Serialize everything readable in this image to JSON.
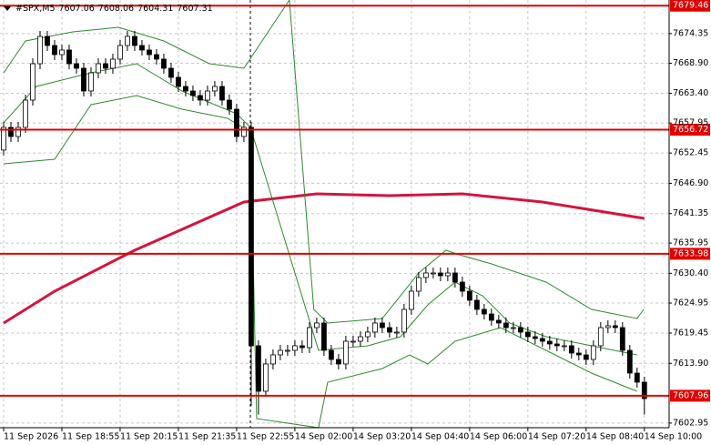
{
  "chart_data": {
    "type": "candlestick",
    "title": "#SPX,M5",
    "header_values": [
      7607.06,
      7608.06,
      7604.31,
      7607.31
    ],
    "candle_color": "#000000",
    "ylim": [
      7602.1,
      7680.5
    ],
    "yticks": [
      7602.95,
      {
        "value": 7613.9,
        "label": "7613.90"
      },
      7619.45,
      7624.95,
      {
        "value": 7630.4,
        "label": "7630.40"
      },
      7635.95,
      7641.35,
      {
        "value": 7646.9,
        "label": "7646.90"
      },
      7652.45,
      7657.95,
      {
        "value": 7663.4,
        "label": "7663.40"
      },
      {
        "value": 7668.9,
        "label": "7668.90"
      },
      7674.35
    ],
    "xlim": [
      -0.5,
      91.4
    ],
    "xticks": [
      {
        "value": 0,
        "label": "11 Sep 2026"
      },
      {
        "value": 8,
        "label": "11 Sep 18:55"
      },
      {
        "value": 16,
        "label": "11 Sep 20:15"
      },
      {
        "value": 24,
        "label": "11 Sep 21:35"
      },
      {
        "value": 32,
        "label": "11 Sep 22:55"
      },
      {
        "value": 40,
        "label": "14 Sep 02:00"
      },
      {
        "value": 48,
        "label": "14 Sep 03:20"
      },
      {
        "value": 56,
        "label": "14 Sep 04:40"
      },
      {
        "value": 64,
        "label": "14 Sep 06:00"
      },
      {
        "value": 72,
        "label": "14 Sep 07:20"
      },
      {
        "value": 80,
        "label": "14 Sep 08:40"
      },
      {
        "value": 88,
        "label": "14 Sep 10:00"
      }
    ],
    "grid": true,
    "candles": [
      [
        7653.0,
        7658.15,
        7652.0,
        7657.15
      ],
      [
        7657.15,
        7658.15,
        7654.48,
        7655.48
      ],
      [
        7655.48,
        7658.15,
        7654.48,
        7657.15
      ],
      [
        7657.15,
        7663.15,
        7656.15,
        7662.15
      ],
      [
        7662.15,
        7669.82,
        7661.15,
        7668.82
      ],
      [
        7668.82,
        7674.83,
        7667.82,
        7673.83
      ],
      [
        7673.83,
        7674.83,
        7671.16,
        7672.16
      ],
      [
        7672.16,
        7673.16,
        7669.49,
        7670.49
      ],
      [
        7670.49,
        7672.33,
        7669.49,
        7671.33
      ],
      [
        7671.33,
        7672.33,
        7667.82,
        7668.82
      ],
      [
        7668.82,
        7669.82,
        7666.99,
        7667.99
      ],
      [
        7667.99,
        7668.99,
        7662.82,
        7663.82
      ],
      [
        7663.82,
        7668.16,
        7662.82,
        7667.16
      ],
      [
        7667.16,
        7669.82,
        7666.16,
        7668.82
      ],
      [
        7668.82,
        7669.82,
        7666.99,
        7667.99
      ],
      [
        7667.99,
        7670.66,
        7666.99,
        7669.66
      ],
      [
        7669.66,
        7673.16,
        7668.66,
        7672.16
      ],
      [
        7672.16,
        7674.83,
        7671.16,
        7673.83
      ],
      [
        7673.83,
        7674.83,
        7671.16,
        7672.16
      ],
      [
        7672.16,
        7673.16,
        7670.33,
        7671.33
      ],
      [
        7671.33,
        7672.33,
        7669.49,
        7670.49
      ],
      [
        7670.49,
        7671.49,
        7668.66,
        7669.66
      ],
      [
        7669.66,
        7670.66,
        7666.99,
        7667.99
      ],
      [
        7667.99,
        7668.99,
        7665.32,
        7666.32
      ],
      [
        7666.32,
        7667.32,
        7663.65,
        7664.65
      ],
      [
        7664.65,
        7665.65,
        7662.82,
        7663.82
      ],
      [
        7663.82,
        7664.82,
        7661.99,
        7662.99
      ],
      [
        7662.99,
        7663.99,
        7661.15,
        7662.15
      ],
      [
        7662.15,
        7664.82,
        7661.15,
        7663.82
      ],
      [
        7663.82,
        7665.65,
        7662.82,
        7664.65
      ],
      [
        7664.65,
        7665.65,
        7661.15,
        7662.15
      ],
      [
        7662.15,
        7663.15,
        7659.48,
        7660.48
      ],
      [
        7660.48,
        7661.48,
        7654.48,
        7655.48
      ],
      [
        7655.48,
        7658.15,
        7654.48,
        7657.15
      ],
      [
        7657.15,
        7658.15,
        7606.12,
        7617.12
      ],
      [
        7617.12,
        7618.12,
        7604.5,
        7608.78
      ],
      [
        7608.78,
        7614.78,
        7607.78,
        7613.78
      ],
      [
        7613.78,
        7616.45,
        7612.78,
        7615.45
      ],
      [
        7615.45,
        7617.28,
        7614.45,
        7616.28
      ],
      [
        7616.28,
        7617.28,
        7615.28,
        7616.28
      ],
      [
        7616.28,
        7618.12,
        7615.28,
        7617.12
      ],
      [
        7617.12,
        7618.12,
        7615.78,
        7616.78
      ],
      [
        7616.78,
        7621.45,
        7615.78,
        7620.45
      ],
      [
        7620.45,
        7622.29,
        7619.45,
        7621.29
      ],
      [
        7621.29,
        7622.29,
        7615.28,
        7616.28
      ],
      [
        7616.28,
        7617.28,
        7613.61,
        7614.61
      ],
      [
        7614.61,
        7615.61,
        7612.78,
        7613.78
      ],
      [
        7613.78,
        7618.95,
        7612.78,
        7617.95
      ],
      [
        7617.95,
        7618.95,
        7616.95,
        7617.95
      ],
      [
        7617.95,
        7619.78,
        7616.95,
        7618.78
      ],
      [
        7618.78,
        7620.62,
        7617.78,
        7619.62
      ],
      [
        7619.62,
        7622.29,
        7618.62,
        7621.29
      ],
      [
        7621.29,
        7622.29,
        7619.45,
        7620.45
      ],
      [
        7620.45,
        7621.45,
        7618.62,
        7619.62
      ],
      [
        7619.62,
        7620.62,
        7618.62,
        7619.62
      ],
      [
        7619.62,
        7624.79,
        7618.62,
        7623.79
      ],
      [
        7623.79,
        7628.12,
        7622.79,
        7627.12
      ],
      [
        7627.12,
        7630.63,
        7626.12,
        7629.63
      ],
      [
        7629.63,
        7631.46,
        7628.63,
        7630.46
      ],
      [
        7630.46,
        7631.46,
        7629.46,
        7630.46
      ],
      [
        7630.46,
        7631.46,
        7628.96,
        7629.96
      ],
      [
        7629.96,
        7631.46,
        7628.96,
        7630.46
      ],
      [
        7630.46,
        7631.46,
        7627.79,
        7628.79
      ],
      [
        7628.79,
        7629.79,
        7626.12,
        7627.12
      ],
      [
        7627.12,
        7628.12,
        7624.46,
        7625.46
      ],
      [
        7625.46,
        7626.46,
        7622.79,
        7623.79
      ],
      [
        7623.79,
        7624.79,
        7621.95,
        7622.95
      ],
      [
        7622.95,
        7623.95,
        7620.79,
        7621.79
      ],
      [
        7621.79,
        7622.79,
        7620.29,
        7621.29
      ],
      [
        7621.29,
        7622.29,
        7619.45,
        7620.45
      ],
      [
        7620.45,
        7621.45,
        7619.45,
        7620.45
      ],
      [
        7620.45,
        7621.45,
        7618.62,
        7619.62
      ],
      [
        7619.62,
        7620.62,
        7617.78,
        7618.78
      ],
      [
        7618.78,
        7619.78,
        7617.45,
        7618.45
      ],
      [
        7618.45,
        7619.45,
        7616.95,
        7617.95
      ],
      [
        7617.95,
        7618.95,
        7616.45,
        7617.45
      ],
      [
        7617.45,
        7618.45,
        7616.12,
        7617.12
      ],
      [
        7617.12,
        7618.12,
        7616.12,
        7617.12
      ],
      [
        7617.12,
        7618.12,
        7614.78,
        7615.78
      ],
      [
        7615.78,
        7616.78,
        7614.45,
        7615.45
      ],
      [
        7615.45,
        7616.45,
        7613.61,
        7614.61
      ],
      [
        7614.61,
        7618.12,
        7613.61,
        7617.12
      ],
      [
        7617.12,
        7621.45,
        7616.12,
        7620.45
      ],
      [
        7620.45,
        7621.79,
        7619.45,
        7620.79
      ],
      [
        7620.79,
        7621.79,
        7619.45,
        7620.45
      ],
      [
        7620.45,
        7621.45,
        7615.28,
        7616.28
      ],
      [
        7616.28,
        7617.28,
        7611.11,
        7612.11
      ],
      [
        7612.11,
        7613.11,
        7609.44,
        7610.44
      ],
      [
        7610.44,
        7611.44,
        7604.5,
        7607.44
      ]
    ],
    "series": [
      {
        "color": "#d4143c",
        "x": [
          0,
          7,
          18,
          33,
          43,
          53,
          63,
          74,
          88
        ],
        "values": [
          7621.29,
          7627.12,
          7634.63,
          7643.47,
          7644.97,
          7644.64,
          7644.97,
          7643.47,
          7640.47
        ]
      },
      {
        "color": "#2e8b2e",
        "x": [
          0,
          3,
          9.5,
          15.75,
          22,
          28.25,
          33,
          39.25,
          42.6,
          44.5,
          52,
          57,
          60.75,
          62.6,
          67,
          74.5,
          80.75,
          87,
          87.9
        ],
        "values": [
          7667.16,
          7672.99,
          7674.66,
          7675.5,
          7672.99,
          7668.82,
          7667.99,
          7680.5,
          7623.79,
          7621.29,
          7622.12,
          7630.46,
          7634.63,
          7633.8,
          7632.13,
          7628.79,
          7623.79,
          7622.12,
          7623.79
        ]
      },
      {
        "color": "#2e8b2e",
        "x": [
          0,
          4.5,
          12,
          18.25,
          24.5,
          32,
          33.9,
          43.25,
          50,
          54.5,
          58.25,
          62,
          65.75,
          69.5,
          74.5,
          80.75,
          87
        ],
        "values": [
          7657.98,
          7664.65,
          7667.16,
          7668.82,
          7663.82,
          7659.65,
          7657.15,
          7616.28,
          7617.12,
          7618.78,
          7624.62,
          7628.79,
          7626.29,
          7621.29,
          7618.78,
          7617.12,
          7615.45
        ]
      },
      {
        "color": "#2e8b2e",
        "x": [
          0,
          7,
          12,
          18.25,
          24.5,
          30.75,
          33.9,
          34.75,
          43.25,
          44.5,
          52,
          55.75,
          58.25,
          62,
          68.25,
          74.5,
          80.75,
          87
        ],
        "values": [
          7650.48,
          7651.31,
          7661.32,
          7662.99,
          7660.48,
          7658.82,
          7656.31,
          7603.77,
          7602.1,
          7610.44,
          7612.95,
          7615.45,
          7613.78,
          7617.95,
          7620.45,
          7616.28,
          7612.11,
          7608.78
        ]
      }
    ],
    "levels": [
      7679.46,
      7656.72,
      7633.98,
      7607.96
    ],
    "level_color": "#e00000"
  }
}
